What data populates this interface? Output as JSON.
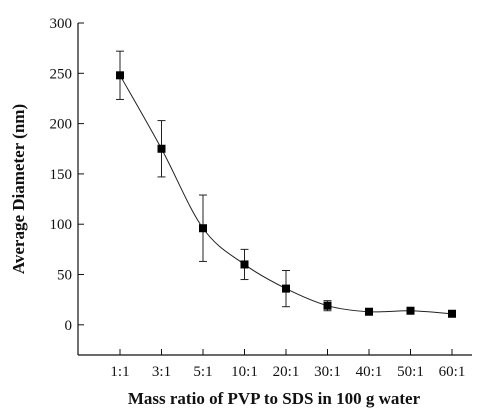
{
  "chart_data": {
    "type": "line",
    "title": "",
    "xlabel": "Mass ratio of PVP to SDS in 100 g water",
    "ylabel": "Average Diameter (nm)",
    "categories": [
      "1:1",
      "3:1",
      "5:1",
      "10:1",
      "20:1",
      "30:1",
      "40:1",
      "50:1",
      "60:1"
    ],
    "series": [
      {
        "values": [
          248,
          175,
          96,
          60,
          36,
          19,
          13,
          14,
          11
        ],
        "errors": [
          24,
          28,
          33,
          15,
          18,
          5,
          0,
          0,
          0
        ]
      }
    ],
    "ylim": [
      -30,
      300
    ],
    "yticks": [
      0,
      50,
      100,
      150,
      200,
      250,
      300
    ],
    "marker": "square",
    "smooth_line": true,
    "error_bars": true,
    "grid": false,
    "legend": "none",
    "colors": {
      "line": "#222222",
      "marker": "#000000"
    }
  }
}
